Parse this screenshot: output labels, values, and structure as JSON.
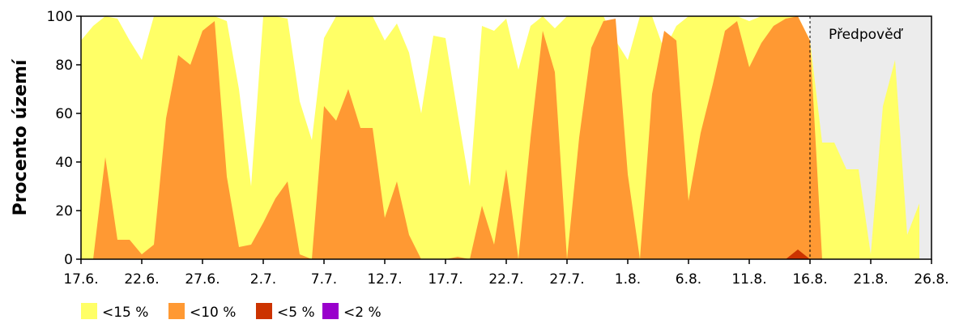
{
  "chart_data": {
    "type": "area",
    "ylabel": "Procento území",
    "ylim": [
      0,
      100
    ],
    "yticks": [
      "0",
      "20",
      "40",
      "60",
      "80",
      "100"
    ],
    "xlim": [
      0,
      70
    ],
    "xtick_labels": [
      "17.6.",
      "22.6.",
      "27.6.",
      "2.7.",
      "7.7.",
      "12.7.",
      "17.7.",
      "22.7.",
      "27.7.",
      "1.8.",
      "6.8.",
      "11.8.",
      "16.8.",
      "21.8.",
      "26.8."
    ],
    "forecast_label": "Předpověď",
    "forecast_start": 60,
    "legend": [
      {
        "label": "<15 %",
        "color": "#ffff66"
      },
      {
        "label": "<10 %",
        "color": "#ff9933"
      },
      {
        "label": "<5 %",
        "color": "#cc3300"
      },
      {
        "label": "<2 %",
        "color": "#9900cc"
      }
    ],
    "series": [
      {
        "name": "<15 %",
        "color": "#ffff66",
        "x": [
          0,
          1,
          2,
          3,
          4,
          5,
          6,
          7,
          8,
          9,
          10,
          11,
          12,
          13,
          14,
          15,
          16,
          17,
          18,
          19,
          20,
          21,
          22,
          23,
          24,
          25,
          26,
          27,
          28,
          29,
          30,
          31,
          32,
          33,
          34,
          35,
          36,
          37,
          38,
          39,
          40,
          41,
          42,
          43,
          44,
          45,
          46,
          47,
          48,
          49,
          50,
          51,
          52,
          53,
          54,
          55,
          56,
          57,
          58,
          59,
          60,
          61,
          62,
          63,
          64,
          65,
          66,
          67,
          68,
          69
        ],
        "values": [
          90,
          96,
          100,
          99,
          90,
          82,
          100,
          100,
          100,
          100,
          100,
          100,
          98,
          70,
          30,
          100,
          100,
          99,
          65,
          49,
          91,
          100,
          100,
          100,
          100,
          90,
          97,
          85,
          60,
          92,
          91,
          60,
          30,
          96,
          94,
          99,
          78,
          96,
          100,
          95,
          100,
          100,
          100,
          100,
          90,
          82,
          100,
          100,
          86,
          96,
          100,
          100,
          100,
          100,
          100,
          98,
          100,
          100,
          100,
          100,
          90,
          48,
          48,
          37,
          37,
          2,
          63,
          82,
          10,
          23
        ]
      },
      {
        "name": "<10 %",
        "color": "#ff9933",
        "x": [
          0,
          1,
          2,
          3,
          4,
          5,
          6,
          7,
          8,
          9,
          10,
          11,
          12,
          13,
          14,
          15,
          16,
          17,
          18,
          19,
          20,
          21,
          22,
          23,
          24,
          25,
          26,
          27,
          28,
          29,
          30,
          31,
          32,
          33,
          34,
          35,
          36,
          37,
          38,
          39,
          40,
          41,
          42,
          43,
          44,
          45,
          46,
          47,
          48,
          49,
          50,
          51,
          52,
          53,
          54,
          55,
          56,
          57,
          58,
          59,
          60,
          61,
          62,
          63,
          64,
          65,
          66,
          67,
          68,
          69
        ],
        "values": [
          0,
          0,
          42,
          8,
          8,
          2,
          6,
          58,
          84,
          80,
          94,
          98,
          34,
          5,
          6,
          15,
          25,
          32,
          2,
          0,
          63,
          57,
          70,
          54,
          54,
          17,
          32,
          10,
          0,
          0,
          0,
          1,
          0,
          22,
          6,
          37,
          0,
          50,
          94,
          77,
          0,
          50,
          87,
          98,
          99,
          35,
          0,
          68,
          94,
          90,
          24,
          52,
          72,
          94,
          98,
          79,
          89,
          96,
          99,
          100,
          90,
          0,
          0,
          0,
          0,
          0,
          0,
          0,
          0,
          0
        ]
      },
      {
        "name": "<5 %",
        "color": "#cc3300",
        "x": [
          0,
          1,
          2,
          3,
          4,
          5,
          6,
          7,
          8,
          9,
          10,
          11,
          12,
          13,
          14,
          15,
          16,
          17,
          18,
          19,
          20,
          21,
          22,
          23,
          24,
          25,
          26,
          27,
          28,
          29,
          30,
          31,
          32,
          33,
          34,
          35,
          36,
          37,
          38,
          39,
          40,
          41,
          42,
          43,
          44,
          45,
          46,
          47,
          48,
          49,
          50,
          51,
          52,
          53,
          54,
          55,
          56,
          57,
          58,
          59,
          60,
          61,
          62,
          63,
          64,
          65,
          66,
          67,
          68,
          69
        ],
        "values": [
          0,
          0,
          0,
          0,
          0,
          0,
          0,
          0,
          0,
          0,
          0,
          0,
          0,
          0,
          0,
          0,
          0,
          0,
          0,
          0,
          0,
          0,
          0,
          0,
          0,
          0,
          0,
          0,
          0,
          0,
          0,
          0,
          0,
          0,
          0,
          0,
          0,
          0,
          0,
          0,
          0,
          0,
          0,
          0,
          0,
          0,
          0,
          0,
          0,
          0,
          0,
          0,
          0,
          0,
          0,
          0,
          0,
          0,
          0,
          4,
          0,
          0,
          0,
          0,
          0,
          0,
          0,
          0,
          0,
          0
        ]
      },
      {
        "name": "<2 %",
        "color": "#9900cc",
        "x": [
          0,
          1,
          2,
          3,
          4,
          5,
          6,
          7,
          8,
          9,
          10,
          11,
          12,
          13,
          14,
          15,
          16,
          17,
          18,
          19,
          20,
          21,
          22,
          23,
          24,
          25,
          26,
          27,
          28,
          29,
          30,
          31,
          32,
          33,
          34,
          35,
          36,
          37,
          38,
          39,
          40,
          41,
          42,
          43,
          44,
          45,
          46,
          47,
          48,
          49,
          50,
          51,
          52,
          53,
          54,
          55,
          56,
          57,
          58,
          59,
          60,
          61,
          62,
          63,
          64,
          65,
          66,
          67,
          68,
          69
        ],
        "values": [
          0,
          0,
          0,
          0,
          0,
          0,
          0,
          0,
          0,
          0,
          0,
          0,
          0,
          0,
          0,
          0,
          0,
          0,
          0,
          0,
          0,
          0,
          0,
          0,
          0,
          0,
          0,
          0,
          0,
          0,
          0,
          0,
          0,
          0,
          0,
          0,
          0,
          0,
          0,
          0,
          0,
          0,
          0,
          0,
          0,
          0,
          0,
          0,
          0,
          0,
          0,
          0,
          0,
          0,
          0,
          0,
          0,
          0,
          0,
          0,
          0,
          0,
          0,
          0,
          0,
          0,
          0,
          0,
          0,
          0
        ]
      }
    ]
  }
}
